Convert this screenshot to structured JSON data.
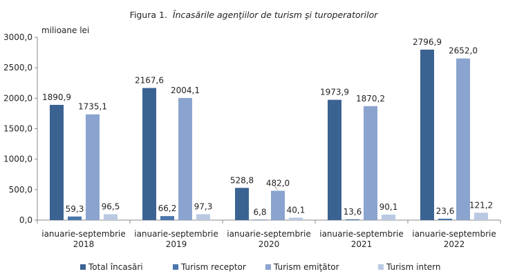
{
  "chart_data": {
    "type": "bar",
    "title_prefix": "Figura 1.",
    "title": "Încasările agenţiilor de turism şi turoperatorilor",
    "ylabel": "milioane lei",
    "xlabel": "",
    "ylim": [
      0,
      3000
    ],
    "yticks": [
      "0,0",
      "500,0",
      "1000,0",
      "1500,0",
      "2000,0",
      "2500,0",
      "3000,0"
    ],
    "ytick_values": [
      0,
      500,
      1000,
      1500,
      2000,
      2500,
      3000
    ],
    "grid": false,
    "legend_position": "bottom",
    "categories": [
      [
        "ianuarie-septembrie",
        "2018"
      ],
      [
        "ianuarie-septembrie",
        "2019"
      ],
      [
        "ianuarie-septembrie",
        "2020"
      ],
      [
        "ianuarie-septembrie",
        "2021"
      ],
      [
        "ianuarie-septembrie",
        "2022"
      ]
    ],
    "series": [
      {
        "name": "Total încasări",
        "color": "#3b6392",
        "values": [
          1890.9,
          2167.6,
          528.8,
          1973.9,
          2796.9
        ],
        "labels": [
          "1890,9",
          "2167,6",
          "528,8",
          "1973,9",
          "2796,9"
        ]
      },
      {
        "name": "Turism receptor",
        "color": "#4a76ab",
        "values": [
          59.3,
          66.2,
          6.8,
          13.6,
          23.6
        ],
        "labels": [
          "59,3",
          "66,2",
          "6,8",
          "13,6",
          "23,6"
        ]
      },
      {
        "name": "Turism emiţător",
        "color": "#8ba4cf",
        "values": [
          1735.1,
          2004.1,
          482.0,
          1870.2,
          2652.0
        ],
        "labels": [
          "1735,1",
          "2004,1",
          "482,0",
          "1870,2",
          "2652,0"
        ]
      },
      {
        "name": "Turism intern",
        "color": "#b9c9e2",
        "values": [
          96.5,
          97.3,
          40.1,
          90.1,
          121.2
        ],
        "labels": [
          "96,5",
          "97,3",
          "40,1",
          "90,1",
          "121,2"
        ]
      }
    ]
  }
}
